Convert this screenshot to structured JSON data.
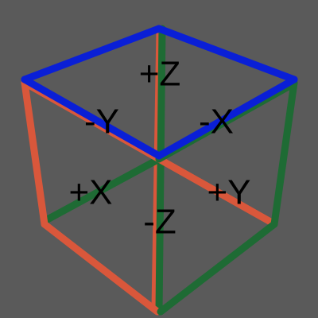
{
  "view_cube": {
    "colors": {
      "background": "#5a5a5a",
      "x_axis": "#d9573b",
      "y_axis": "#1e6b34",
      "z_axis": "#0a1fd6"
    },
    "labels": {
      "pos_z": "+Z",
      "neg_y": "-Y",
      "neg_x": "-X",
      "pos_x": "+X",
      "pos_y": "+Y",
      "neg_z": "-Z"
    }
  }
}
